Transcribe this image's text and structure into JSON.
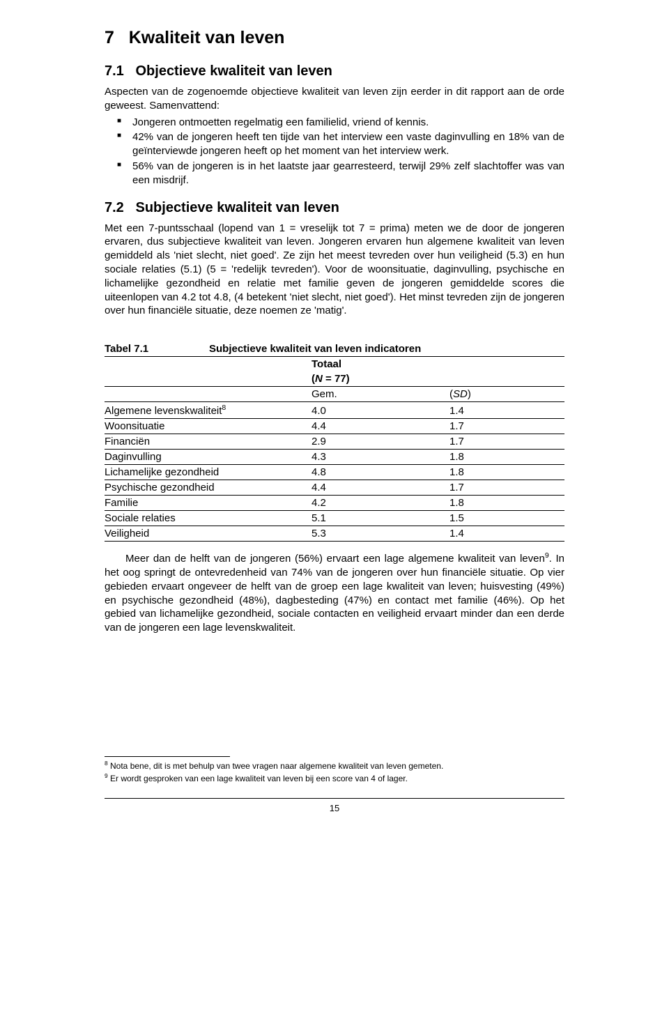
{
  "colors": {
    "text": "#000000",
    "background": "#ffffff",
    "rule": "#000000"
  },
  "h1_num": "7",
  "h1_text": "Kwaliteit van leven",
  "s71_num": "7.1",
  "s71_title": "Objectieve kwaliteit van leven",
  "s71_intro": "Aspecten van de zogenoemde objectieve kwaliteit van leven zijn eerder in dit rapport aan de orde geweest. Samenvattend:",
  "bul": [
    "Jongeren ontmoetten regelmatig een familielid, vriend of kennis.",
    "42% van de jongeren heeft ten tijde van het interview een vaste daginvulling en 18% van de geïnterviewde jongeren heeft op het moment van het interview werk.",
    "56% van de jongeren is in het laatste jaar gearresteerd, terwijl 29% zelf slachtoffer was van een misdrijf."
  ],
  "s72_num": "7.2",
  "s72_title": "Subjectieve kwaliteit van leven",
  "s72_body": "Met een 7-puntsschaal (lopend van 1 = vreselijk tot 7 = prima) meten we de door de jongeren ervaren, dus subjectieve kwaliteit van leven. Jongeren ervaren hun algemene kwaliteit van leven gemiddeld als 'niet slecht, niet goed'. Ze zijn het meest tevreden over hun veiligheid (5.3) en hun sociale relaties (5.1) (5 = 'redelijk tevreden'). Voor de woonsituatie, daginvulling, psychische en lichamelijke gezondheid en relatie met familie geven de jongeren gemiddelde scores die uiteenlopen van 4.2 tot 4.8, (4 betekent 'niet slecht, niet goed'). Het minst tevreden zijn de jongeren over hun financiële situatie, deze noemen ze 'matig'.",
  "table": {
    "label": "Tabel 7.1",
    "title": "Subjectieve kwaliteit van leven indicatoren",
    "totaal_label": "Totaal",
    "n_label_open": "(",
    "n_label_letter": "N",
    "n_label_rest": " = 77)",
    "gem_label": "Gem.",
    "sd_label_open": "(",
    "sd_label_letter": "SD",
    "sd_label_close": ")",
    "col_widths_pct": [
      45,
      30,
      25
    ],
    "rows": [
      {
        "name": "Algemene levenskwaliteit",
        "sup": "8",
        "gem": "4.0",
        "sd": "1.4"
      },
      {
        "name": "Woonsituatie",
        "sup": "",
        "gem": "4.4",
        "sd": "1.7"
      },
      {
        "name": "Financiën",
        "sup": "",
        "gem": "2.9",
        "sd": "1.7"
      },
      {
        "name": "Daginvulling",
        "sup": "",
        "gem": "4.3",
        "sd": "1.8"
      },
      {
        "name": "Lichamelijke gezondheid",
        "sup": "",
        "gem": "4.8",
        "sd": "1.8"
      },
      {
        "name": "Psychische gezondheid",
        "sup": "",
        "gem": "4.4",
        "sd": "1.7"
      },
      {
        "name": "Familie",
        "sup": "",
        "gem": "4.2",
        "sd": "1.8"
      },
      {
        "name": "Sociale relaties",
        "sup": "",
        "gem": "5.1",
        "sd": "1.5"
      },
      {
        "name": "Veiligheid",
        "sup": "",
        "gem": "5.3",
        "sd": "1.4"
      }
    ]
  },
  "after_table_para": "Meer dan de helft van de jongeren (56%) ervaart een lage algemene kwaliteit van leven",
  "after_table_sup": "9",
  "after_table_rest": ". In het oog springt de ontevredenheid van 74% van de jongeren over hun financiële situatie. Op vier gebieden ervaart ongeveer de helft van de groep een lage kwaliteit van leven; huisvesting (49%) en psychische gezondheid (48%), dagbesteding (47%) en contact met familie (46%). Op het gebied van lichamelijke gezondheid, sociale contacten en veiligheid ervaart minder dan een derde van de jongeren een lage levenskwaliteit.",
  "footnotes": [
    {
      "num": "8",
      "text": " Nota bene, dit is met behulp van twee vragen naar algemene kwaliteit van leven gemeten."
    },
    {
      "num": "9",
      "text": " Er wordt gesproken van een lage kwaliteit van leven bij een score van 4 of lager."
    }
  ],
  "page_number": "15"
}
